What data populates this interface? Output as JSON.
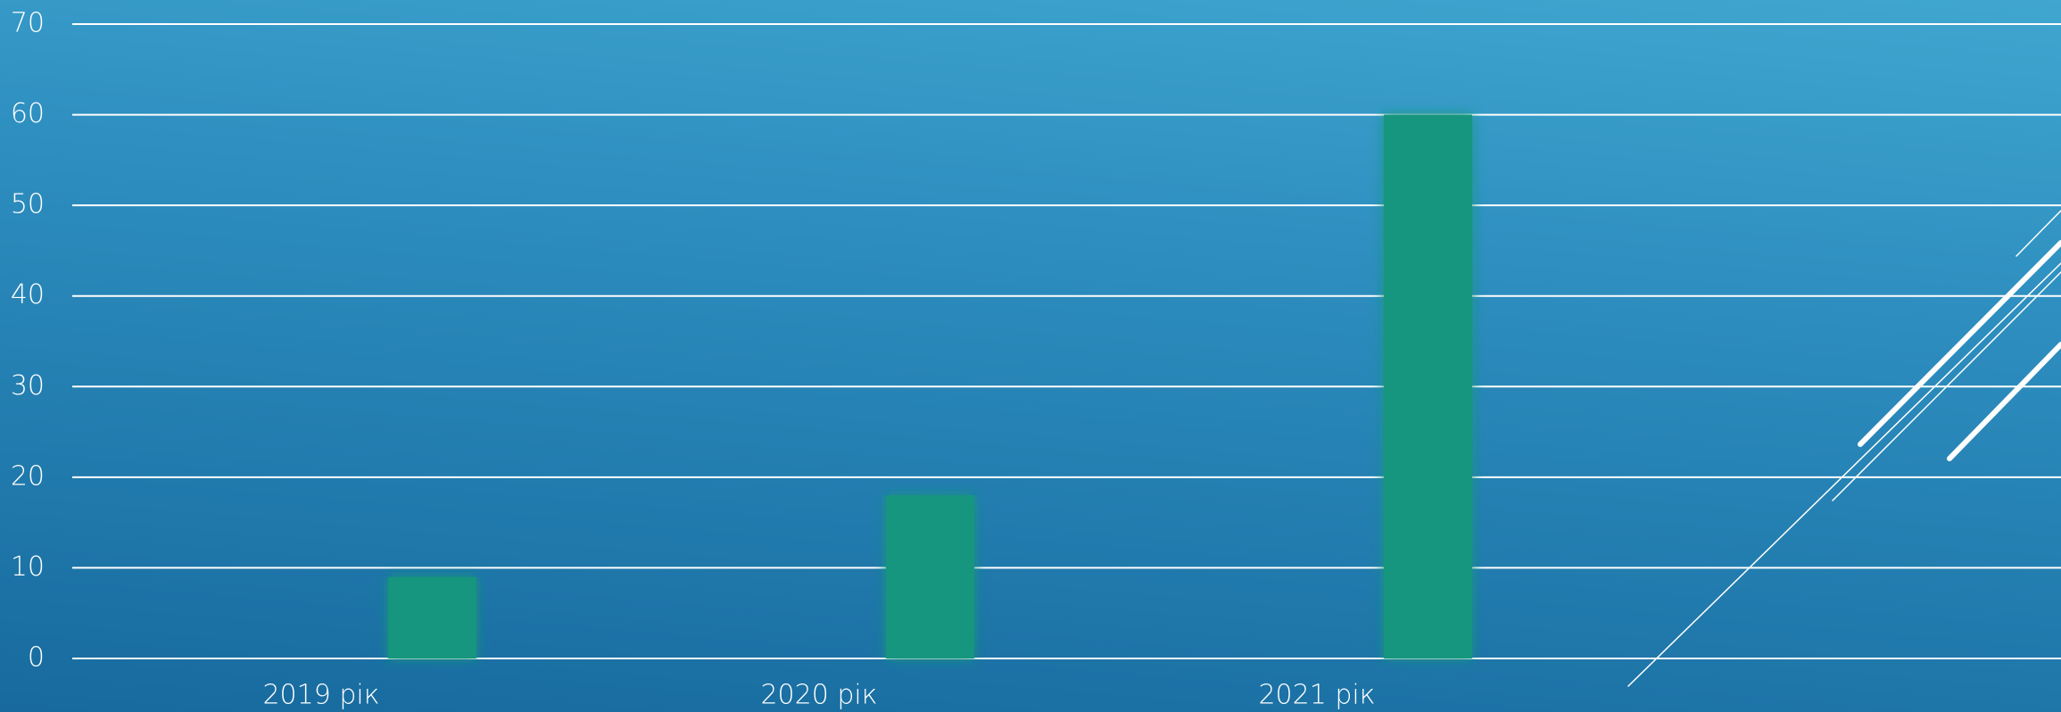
{
  "chart_data": {
    "type": "bar",
    "categories": [
      "2019 рік",
      "2020 рік",
      "2021 рік"
    ],
    "values": [
      9,
      18,
      60
    ],
    "color": "#16967e",
    "ylim": [
      0,
      70
    ],
    "yticks": [
      0,
      10,
      20,
      30,
      40,
      50,
      60,
      70
    ],
    "grid": true
  }
}
